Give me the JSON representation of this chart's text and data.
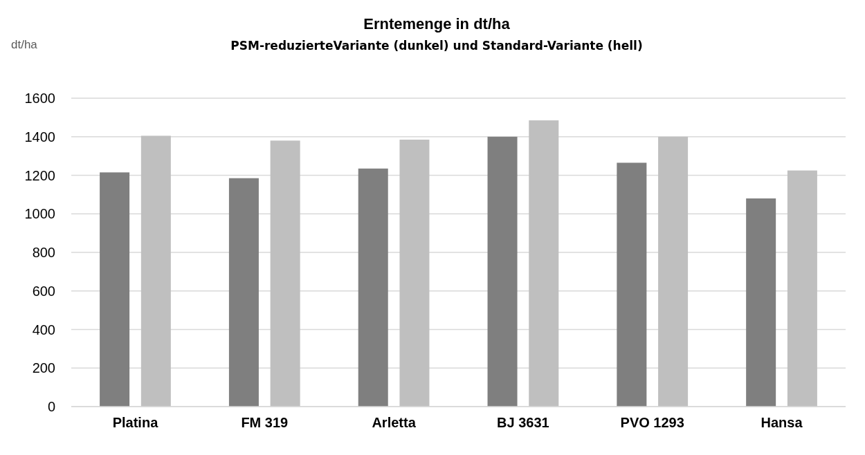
{
  "chart_data": {
    "type": "bar",
    "title": "Erntemenge in dt/ha",
    "subtitle": "PSM-reduzierteVariante (dunkel)  und Standard-Variante (hell)",
    "ylabel": "dt/ha",
    "categories": [
      "Platina",
      "FM 319",
      "Arletta",
      "BJ 3631",
      "PVO 1293",
      "Hansa"
    ],
    "series": [
      {
        "color": "#7f7f7f",
        "values": [
          1215,
          1185,
          1235,
          1400,
          1265,
          1080
        ]
      },
      {
        "color": "#bfbfbf",
        "values": [
          1405,
          1380,
          1385,
          1485,
          1400,
          1225
        ]
      }
    ],
    "ylim": [
      0,
      1600
    ],
    "yticks": [
      0,
      200,
      400,
      600,
      800,
      1000,
      1200,
      1400,
      1600
    ],
    "grid": "y"
  }
}
